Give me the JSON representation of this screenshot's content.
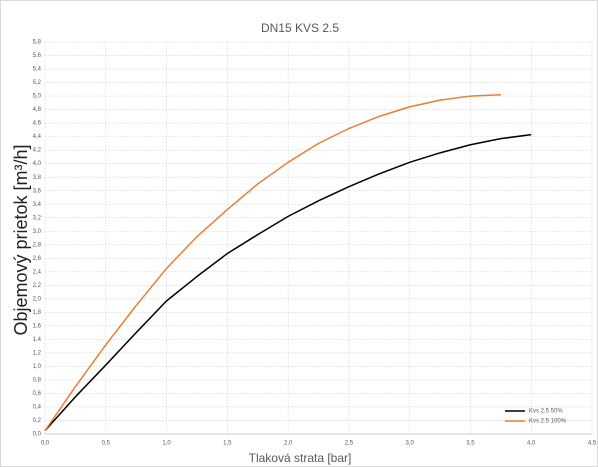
{
  "chart_data": {
    "type": "line",
    "title": "DN15 KVS 2.5",
    "xlabel": "Tlaková strata [bar]",
    "ylabel": "Objemový prietok [m³/h]",
    "xlim": [
      0,
      4.5
    ],
    "ylim": [
      0,
      5.8
    ],
    "xticks": [
      {
        "value": 0,
        "label": "0,0"
      },
      {
        "value": 0.5,
        "label": "0,5"
      },
      {
        "value": 1,
        "label": "1,0"
      },
      {
        "value": 1.5,
        "label": "1,5"
      },
      {
        "value": 2,
        "label": "2,0"
      },
      {
        "value": 2.5,
        "label": "2,5"
      },
      {
        "value": 3,
        "label": "3,0"
      },
      {
        "value": 3.5,
        "label": "3,5"
      },
      {
        "value": 4,
        "label": "4,0"
      },
      {
        "value": 4.5,
        "label": "4,5"
      }
    ],
    "yticks": [
      {
        "value": 0,
        "label": "0,0"
      },
      {
        "value": 0.2,
        "label": "0,2"
      },
      {
        "value": 0.4,
        "label": "0,4"
      },
      {
        "value": 0.6,
        "label": "0,6"
      },
      {
        "value": 0.8,
        "label": "0,8"
      },
      {
        "value": 1,
        "label": "1,0"
      },
      {
        "value": 1.2,
        "label": "1,2"
      },
      {
        "value": 1.4,
        "label": "1,4"
      },
      {
        "value": 1.6,
        "label": "1,6"
      },
      {
        "value": 1.8,
        "label": "1,8"
      },
      {
        "value": 2,
        "label": "2,0"
      },
      {
        "value": 2.2,
        "label": "2,2"
      },
      {
        "value": 2.4,
        "label": "2,4"
      },
      {
        "value": 2.6,
        "label": "2,6"
      },
      {
        "value": 2.8,
        "label": "2,8"
      },
      {
        "value": 3,
        "label": "3,0"
      },
      {
        "value": 3.2,
        "label": "3,2"
      },
      {
        "value": 3.4,
        "label": "3,4"
      },
      {
        "value": 3.6,
        "label": "3,6"
      },
      {
        "value": 3.8,
        "label": "3,8"
      },
      {
        "value": 4,
        "label": "4,0"
      },
      {
        "value": 4.2,
        "label": "4,2"
      },
      {
        "value": 4.4,
        "label": "4,4"
      },
      {
        "value": 4.6,
        "label": "4,6"
      },
      {
        "value": 4.8,
        "label": "4,8"
      },
      {
        "value": 5,
        "label": "5,0"
      },
      {
        "value": 5.2,
        "label": "5,2"
      },
      {
        "value": 5.4,
        "label": "5,4"
      },
      {
        "value": 5.6,
        "label": "5,6"
      },
      {
        "value": 5.8,
        "label": "5,8"
      }
    ],
    "grid": true,
    "legend": "lower right",
    "series": [
      {
        "name": "Kvs 2.5 50%",
        "color": "#000000",
        "x": [
          0,
          0.25,
          0.5,
          0.75,
          1,
          1.25,
          1.5,
          1.75,
          2,
          2.25,
          2.5,
          2.75,
          3,
          3.25,
          3.5,
          3.75,
          4
        ],
        "values": [
          0.05,
          0.55,
          1.02,
          1.5,
          1.97,
          2.33,
          2.67,
          2.95,
          3.22,
          3.45,
          3.66,
          3.85,
          4.02,
          4.16,
          4.28,
          4.37,
          4.43
        ]
      },
      {
        "name": "Kvs 2.5 100%",
        "color": "#ed7d31",
        "x": [
          0,
          0.25,
          0.5,
          0.75,
          1,
          1.25,
          1.5,
          1.75,
          2,
          2.25,
          2.5,
          2.75,
          3,
          3.25,
          3.5,
          3.75
        ],
        "values": [
          0.05,
          0.7,
          1.32,
          1.9,
          2.45,
          2.92,
          3.32,
          3.7,
          4.02,
          4.3,
          4.52,
          4.7,
          4.84,
          4.94,
          5.0,
          5.02
        ]
      }
    ]
  }
}
